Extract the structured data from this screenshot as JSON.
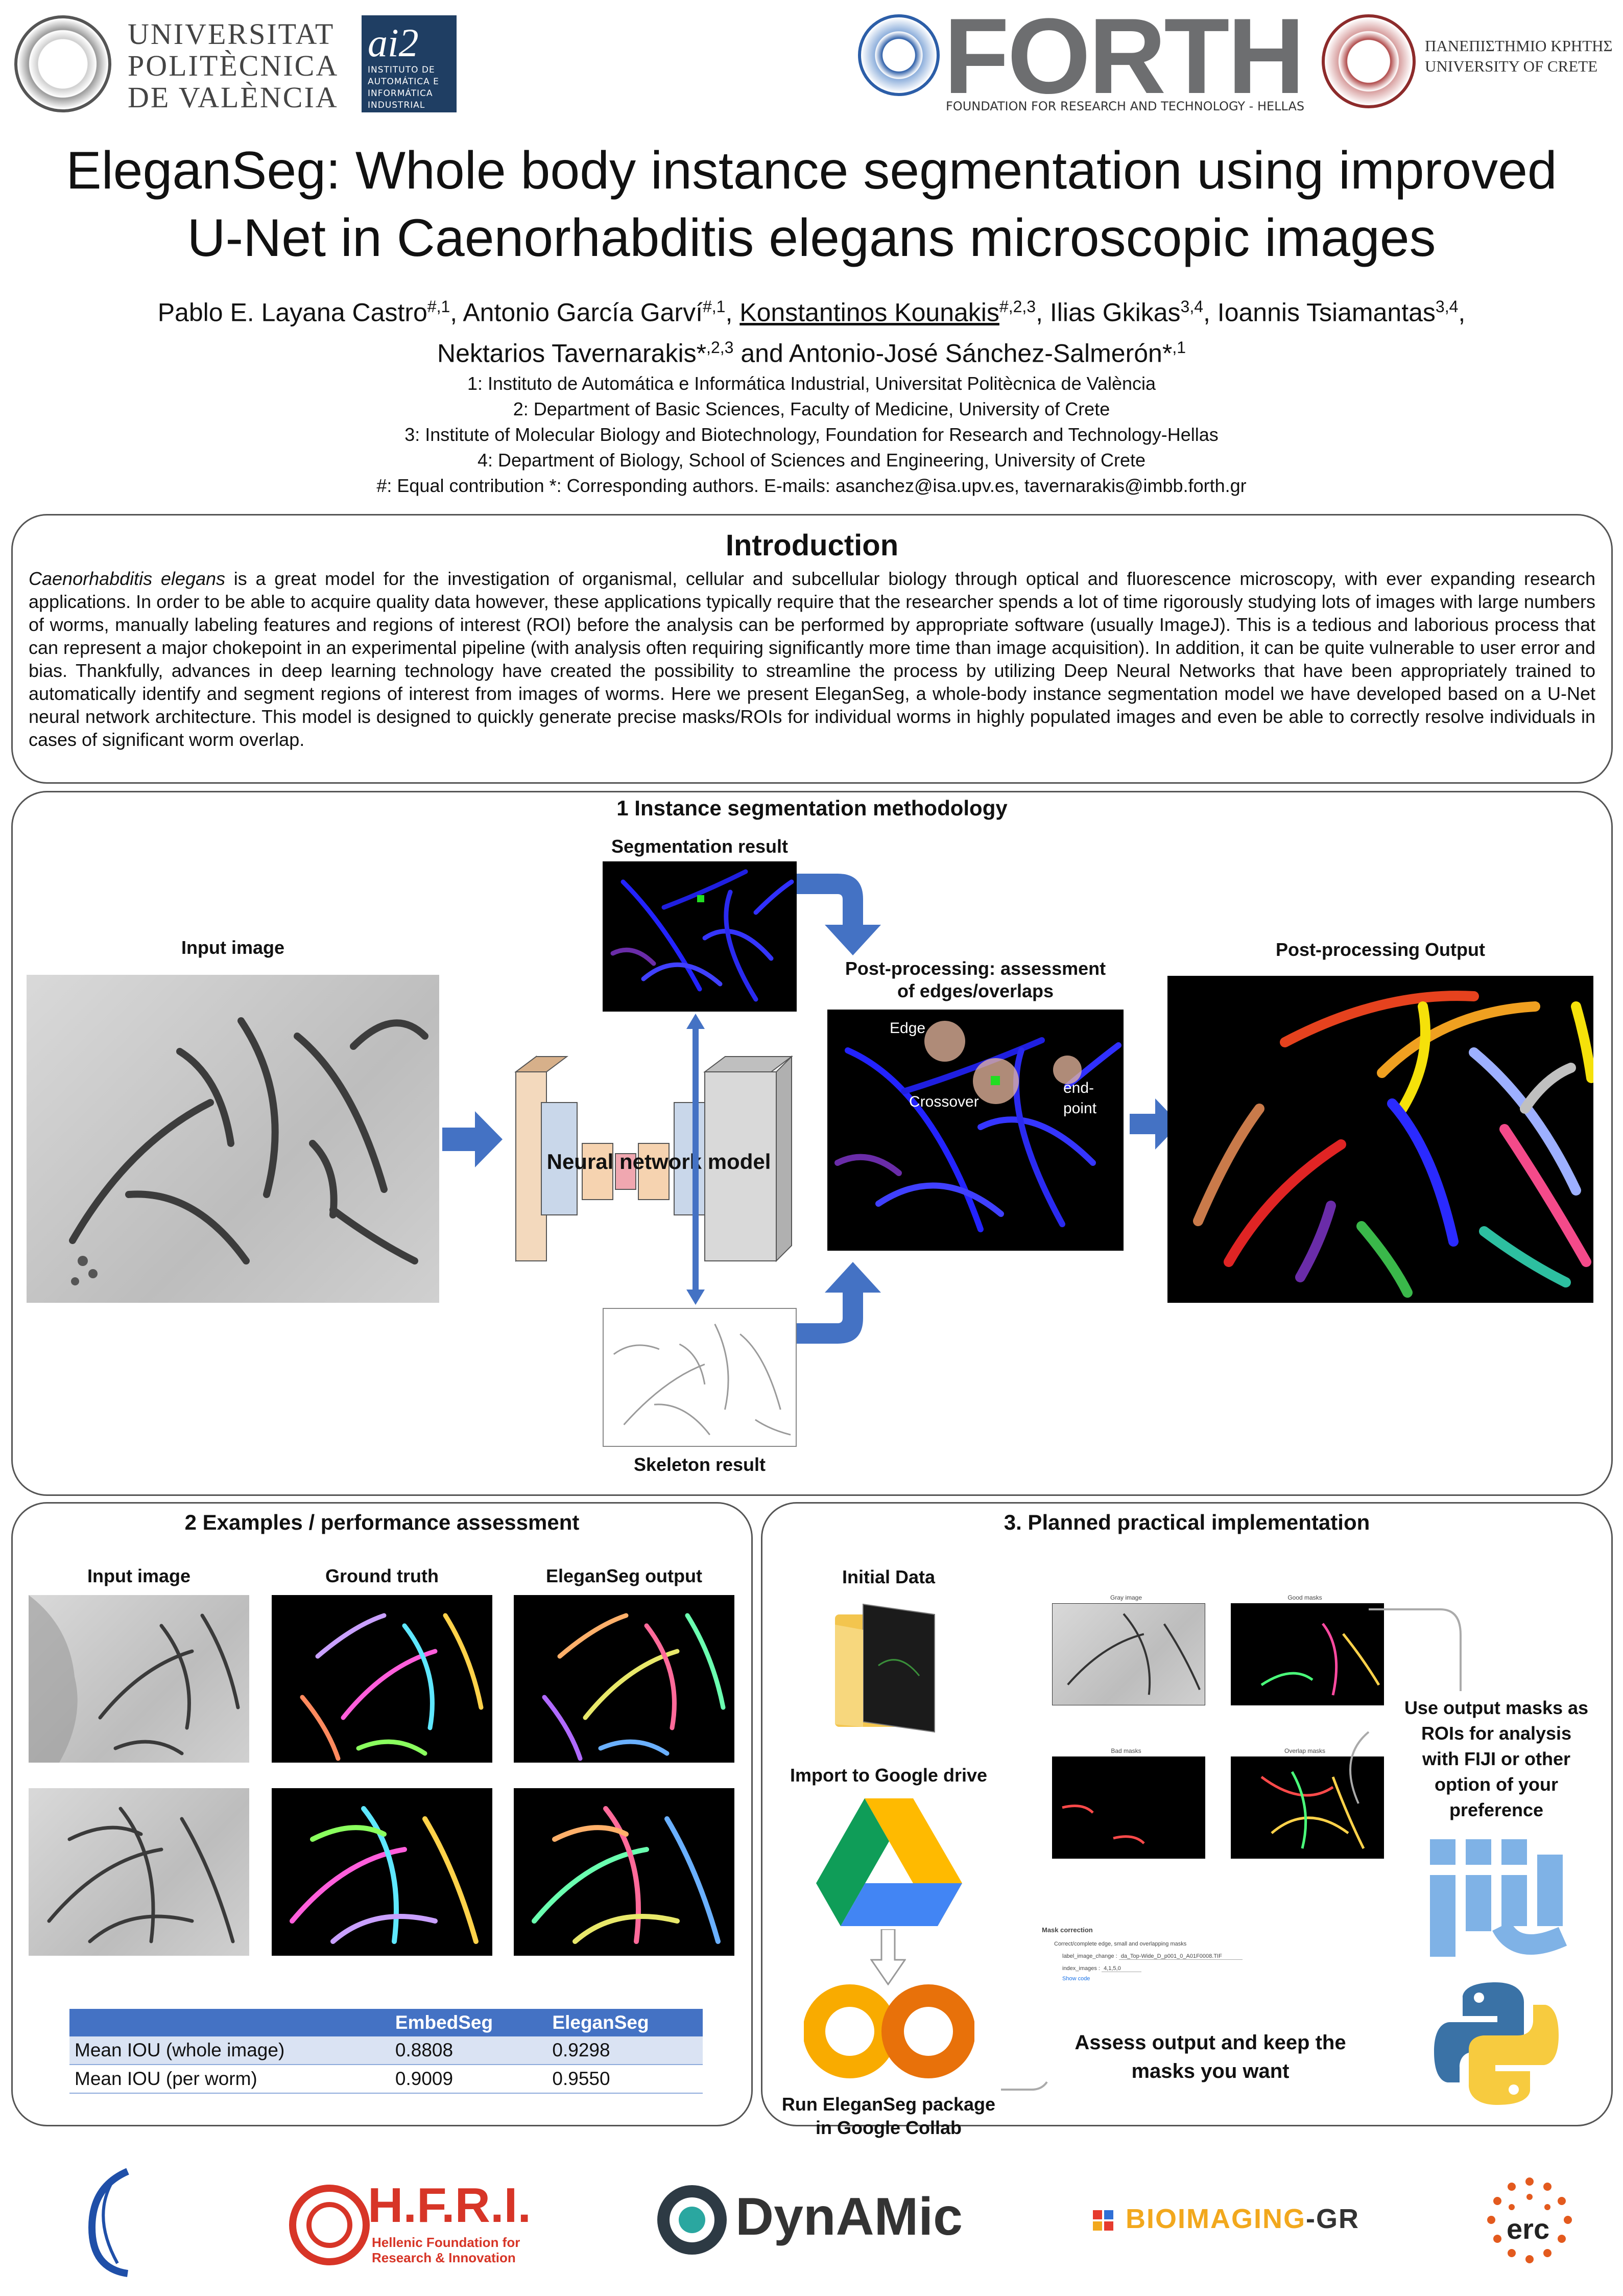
{
  "header": {
    "upv_lines": [
      "UNIVERSITAT",
      "POLITÈCNICA",
      "DE VALÈNCIA"
    ],
    "ai2_big": "ai2",
    "ai2_small": [
      "INSTITUTO DE",
      "AUTOMÁTICA E",
      "INFORMÁTICA",
      "INDUSTRIAL"
    ],
    "forth_word": "FORTH",
    "forth_sub": "FOUNDATION FOR RESEARCH AND TECHNOLOGY - HELLAS",
    "crete_lines": [
      "ΠΑΝΕΠΙΣΤΗΜΙΟ ΚΡΗΤΗΣ",
      "UNIVERSITY OF CRETE"
    ]
  },
  "title_lines": [
    "EleganSeg: Whole body instance segmentation using improved",
    "U-Net in Caenorhabditis elegans microscopic images"
  ],
  "authors": {
    "a1": "Pablo E. Layana Castro",
    "a1_sup": "#,1",
    "a2": "Antonio García Garví",
    "a2_sup": "#,1",
    "a3": "Konstantinos Kounakis",
    "a3_sup": "#,2,3",
    "a4": "Ilias Gkikas",
    "a4_sup": "3,4",
    "a5": "Ioannis Tsiamantas",
    "a5_sup": "3,4",
    "a6": "Nektarios Tavernarakis*",
    "a6_sup": ",2,3",
    "and": "and",
    "a7": "Antonio-José Sánchez-Salmerón*",
    "a7_sup": ",1"
  },
  "affiliations": [
    "1:  Instituto de Automática e Informática Industrial, Universitat Politècnica de València",
    "2: Department of Basic Sciences, Faculty of Medicine, University of Crete",
    "3: Institute of Molecular Biology and Biotechnology, Foundation for Research and Technology-Hellas",
    "4: Department of Biology, School of Sciences and Engineering, University of Crete",
    "#: Equal contribution  *: Corresponding authors. E-mails: asanchez@isa.upv.es, tavernarakis@imbb.forth.gr"
  ],
  "intro": {
    "title": "Introduction",
    "lead": "Caenorhabditis elegans",
    "body": " is a great model for the investigation of organismal, cellular and subcellular biology through optical and fluorescence microscopy, with ever expanding research applications. In order to be able to acquire quality data however, these applications typically require that the researcher spends a lot of time rigorously studying lots of images with large numbers of worms, manually labeling features and regions of interest (ROI) before the analysis can be performed by appropriate software (usually ImageJ). This is a tedious and laborious process that can represent a major chokepoint in an experimental pipeline (with analysis often requiring significantly more time than image acquisition). In addition, it can be quite vulnerable to user error and bias. Thankfully, advances in deep learning technology have created the possibility to streamline the process by utilizing Deep Neural Networks that have been appropriately trained to automatically identify and segment regions of interest from images of worms. Here we present EleganSeg, a whole-body instance segmentation model we have developed based on a U-Net neural network architecture. This model is designed to quickly generate precise masks/ROIs for individual worms in highly populated images and even be able to correctly resolve individuals in cases of significant worm overlap."
  },
  "methodology": {
    "title": "1 Instance segmentation methodology",
    "input_label": "Input image",
    "seg_label": "Segmentation result",
    "post_label_1": "Post-processing: assessment",
    "post_label_2": "of edges/overlaps",
    "output_label": "Post-processing Output",
    "nn_label": "Neural network model",
    "skeleton_label": "Skeleton result",
    "edge_tag": "Edge",
    "crossover_tag": "Crossover",
    "endpoint_tag_1": "end-",
    "endpoint_tag_2": "point"
  },
  "examples": {
    "title": "2 Examples / performance assessment",
    "col_input": "Input image",
    "col_gt": "Ground truth",
    "col_out": "EleganSeg output",
    "table": {
      "headers": [
        "",
        "EmbedSeg",
        "EleganSeg"
      ],
      "rows": [
        [
          "Mean IOU (whole image)",
          "0.8808",
          "0.9298"
        ],
        [
          "Mean IOU (per worm)",
          "0.9009",
          "0.9550"
        ]
      ]
    }
  },
  "implementation": {
    "title": "3. Planned practical implementation",
    "initial_data": "Initial Data",
    "import_drive": "Import to Google drive",
    "run_1": "Run EleganSeg package",
    "run_2": "in Google Collab",
    "assess_1": "Assess output and keep the",
    "assess_2": "masks you want",
    "use_lines": [
      "Use output masks as",
      "ROIs for analysis",
      "with FIJI or other",
      "option of your",
      "preference"
    ],
    "thumb_titles": [
      "Gray image",
      "Good masks",
      "Bad masks",
      "Overlap masks"
    ],
    "mask_correction": "Mask correction",
    "mc_line1": "Correct/complete edge, small and overlapping masks",
    "mc_label1": "label_image_change :",
    "mc_value1": "da_Top-Wide_D_p001_0_A01F0008.TIF",
    "mc_label2": "index_images :",
    "mc_value2": "4,1,5,0",
    "mc_link": "Show code"
  },
  "footer": {
    "hfri_big": "H.F.R.I.",
    "hfri_small": [
      "Hellenic Foundation for",
      "Research & Innovation"
    ],
    "dynamic": "DynAMic",
    "bioimaging": "BIOIMAGING",
    "bioimaging_suffix": "-GR",
    "erc": "erc"
  },
  "colors": {
    "accent_blue": "#4472c4",
    "box_border": "#555555",
    "ai2_blue": "#1f3e63",
    "forth_gray": "#6d6e70"
  }
}
